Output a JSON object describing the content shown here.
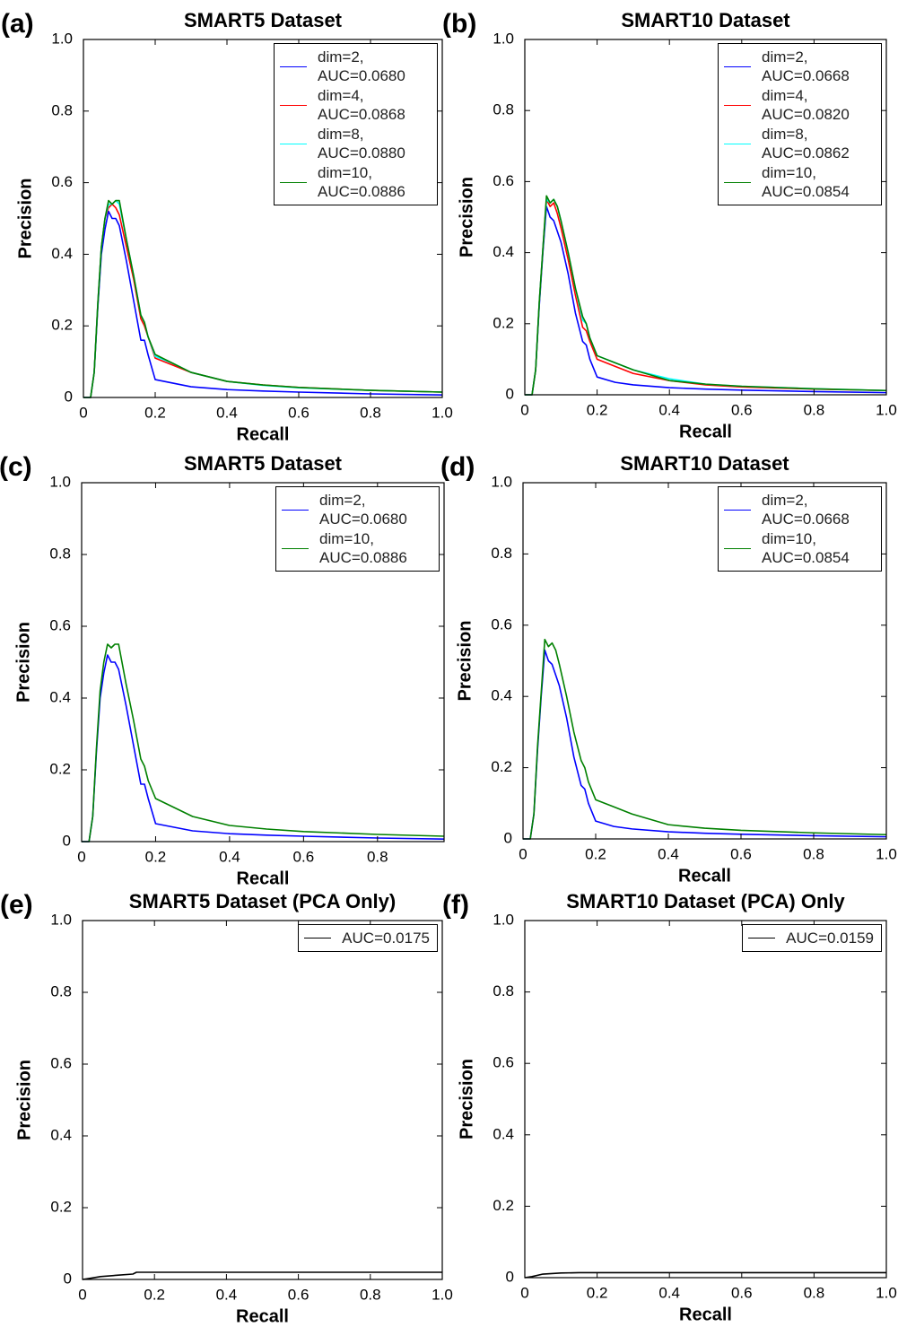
{
  "chart_data": [
    {
      "type": "line",
      "panel": "(a)",
      "title": "SMART5 Dataset",
      "xlabel": "Recall",
      "ylabel": "Precision",
      "xlim": [
        0,
        1
      ],
      "ylim": [
        0,
        1
      ],
      "xticks": [
        0,
        0.2,
        0.4,
        0.6,
        0.8,
        {
          "value": 1,
          "label": "1.0"
        }
      ],
      "yticks": [
        0,
        0.2,
        0.4,
        0.6,
        0.8,
        {
          "value": 1,
          "label": "1.0"
        }
      ],
      "legend": "upper right",
      "x": [
        0,
        0.02,
        0.03,
        0.04,
        0.05,
        0.06,
        0.07,
        0.08,
        0.09,
        0.1,
        0.12,
        0.14,
        0.16,
        0.17,
        0.18,
        0.2,
        0.25,
        0.3,
        0.4,
        0.5,
        0.6,
        0.8,
        1.0
      ],
      "series": [
        {
          "name": "dim=2, AUC=0.0680",
          "color": "#0000ff",
          "values": [
            0,
            0,
            0.07,
            0.25,
            0.4,
            0.47,
            0.52,
            0.5,
            0.5,
            0.48,
            0.38,
            0.27,
            0.16,
            0.16,
            0.12,
            0.05,
            0.04,
            0.03,
            0.022,
            0.018,
            0.015,
            0.01,
            0.007
          ]
        },
        {
          "name": "dim=4, AUC=0.0868",
          "color": "#ff0000",
          "values": [
            0,
            0,
            0.07,
            0.26,
            0.42,
            0.5,
            0.53,
            0.54,
            0.53,
            0.51,
            0.42,
            0.33,
            0.22,
            0.2,
            0.17,
            0.11,
            0.09,
            0.07,
            0.045,
            0.035,
            0.028,
            0.02,
            0.015
          ]
        },
        {
          "name": "dim=8, AUC=0.0880",
          "color": "#00ffff",
          "values": [
            0,
            0,
            0.07,
            0.26,
            0.42,
            0.5,
            0.54,
            0.54,
            0.55,
            0.54,
            0.44,
            0.34,
            0.23,
            0.21,
            0.17,
            0.115,
            0.095,
            0.07,
            0.045,
            0.034,
            0.027,
            0.02,
            0.015
          ]
        },
        {
          "name": "dim=10, AUC=0.0886",
          "color": "#008000",
          "values": [
            0,
            0,
            0.07,
            0.26,
            0.42,
            0.5,
            0.55,
            0.54,
            0.55,
            0.55,
            0.44,
            0.34,
            0.23,
            0.21,
            0.17,
            0.12,
            0.095,
            0.07,
            0.045,
            0.035,
            0.028,
            0.02,
            0.015
          ]
        }
      ]
    },
    {
      "type": "line",
      "panel": "(b)",
      "title": "SMART10 Dataset",
      "xlabel": "Recall",
      "ylabel": "Precision",
      "xlim": [
        0,
        1
      ],
      "ylim": [
        0,
        1
      ],
      "xticks": [
        0,
        0.2,
        0.4,
        0.6,
        0.8,
        {
          "value": 1,
          "label": "1.0"
        }
      ],
      "yticks": [
        0,
        0.2,
        0.4,
        0.6,
        0.8,
        {
          "value": 1,
          "label": "1.0"
        }
      ],
      "legend": "upper right",
      "x": [
        0,
        0.02,
        0.03,
        0.04,
        0.05,
        0.06,
        0.07,
        0.08,
        0.09,
        0.1,
        0.12,
        0.14,
        0.16,
        0.17,
        0.18,
        0.2,
        0.25,
        0.3,
        0.4,
        0.5,
        0.6,
        0.8,
        1.0
      ],
      "series": [
        {
          "name": "dim=2, AUC=0.0668",
          "color": "#0000ff",
          "values": [
            0,
            0,
            0.07,
            0.25,
            0.4,
            0.53,
            0.5,
            0.49,
            0.46,
            0.43,
            0.34,
            0.23,
            0.15,
            0.14,
            0.1,
            0.05,
            0.035,
            0.028,
            0.02,
            0.016,
            0.013,
            0.009,
            0.006
          ]
        },
        {
          "name": "dim=4, AUC=0.0820",
          "color": "#ff0000",
          "values": [
            0,
            0,
            0.07,
            0.26,
            0.41,
            0.55,
            0.53,
            0.54,
            0.51,
            0.47,
            0.38,
            0.28,
            0.19,
            0.18,
            0.15,
            0.1,
            0.08,
            0.06,
            0.04,
            0.028,
            0.022,
            0.016,
            0.012
          ]
        },
        {
          "name": "dim=8, AUC=0.0862",
          "color": "#00ffff",
          "values": [
            0,
            0,
            0.07,
            0.26,
            0.41,
            0.55,
            0.54,
            0.55,
            0.53,
            0.49,
            0.4,
            0.3,
            0.21,
            0.2,
            0.16,
            0.11,
            0.09,
            0.07,
            0.045,
            0.03,
            0.024,
            0.017,
            0.012
          ]
        },
        {
          "name": "dim=10, AUC=0.0854",
          "color": "#008000",
          "values": [
            0,
            0,
            0.07,
            0.26,
            0.41,
            0.56,
            0.54,
            0.55,
            0.53,
            0.49,
            0.4,
            0.3,
            0.22,
            0.2,
            0.16,
            0.11,
            0.09,
            0.07,
            0.04,
            0.03,
            0.024,
            0.017,
            0.012
          ]
        }
      ]
    },
    {
      "type": "line",
      "panel": "(c)",
      "title": "SMART5 Dataset",
      "xlabel": "Recall",
      "ylabel": "Precision",
      "xlim": [
        0,
        0.98
      ],
      "ylim": [
        0,
        1
      ],
      "xticks": [
        0,
        0.2,
        0.4,
        0.6,
        0.8
      ],
      "yticks": [
        0,
        0.2,
        0.4,
        0.6,
        0.8,
        {
          "value": 1,
          "label": "1.0"
        }
      ],
      "legend": "upper right",
      "x": [
        0,
        0.02,
        0.03,
        0.04,
        0.05,
        0.06,
        0.07,
        0.08,
        0.09,
        0.1,
        0.12,
        0.14,
        0.16,
        0.17,
        0.18,
        0.2,
        0.25,
        0.3,
        0.4,
        0.5,
        0.6,
        0.8,
        0.98
      ],
      "series": [
        {
          "name": "dim=2, AUC=0.0680",
          "color": "#0000ff",
          "values": [
            0,
            0,
            0.07,
            0.25,
            0.4,
            0.47,
            0.52,
            0.5,
            0.5,
            0.48,
            0.38,
            0.27,
            0.16,
            0.16,
            0.12,
            0.05,
            0.04,
            0.03,
            0.022,
            0.018,
            0.015,
            0.01,
            0.007
          ]
        },
        {
          "name": "dim=10, AUC=0.0886",
          "color": "#008000",
          "values": [
            0,
            0,
            0.07,
            0.26,
            0.42,
            0.5,
            0.55,
            0.54,
            0.55,
            0.55,
            0.44,
            0.34,
            0.23,
            0.21,
            0.17,
            0.12,
            0.095,
            0.07,
            0.045,
            0.035,
            0.028,
            0.02,
            0.015
          ]
        }
      ]
    },
    {
      "type": "line",
      "panel": "(d)",
      "title": "SMART10 Dataset",
      "xlabel": "Recall",
      "ylabel": "Precision",
      "xlim": [
        0,
        1
      ],
      "ylim": [
        0,
        1
      ],
      "xticks": [
        0,
        0.2,
        0.4,
        0.6,
        0.8,
        {
          "value": 1,
          "label": "1.0"
        }
      ],
      "yticks": [
        0,
        0.2,
        0.4,
        0.6,
        0.8,
        {
          "value": 1,
          "label": "1.0"
        }
      ],
      "legend": "upper right",
      "x": [
        0,
        0.02,
        0.03,
        0.04,
        0.05,
        0.06,
        0.07,
        0.08,
        0.09,
        0.1,
        0.12,
        0.14,
        0.16,
        0.17,
        0.18,
        0.2,
        0.25,
        0.3,
        0.4,
        0.5,
        0.6,
        0.8,
        1.0
      ],
      "series": [
        {
          "name": "dim=2, AUC=0.0668",
          "color": "#0000ff",
          "values": [
            0,
            0,
            0.07,
            0.25,
            0.4,
            0.53,
            0.5,
            0.49,
            0.46,
            0.43,
            0.34,
            0.23,
            0.15,
            0.14,
            0.1,
            0.05,
            0.035,
            0.028,
            0.02,
            0.016,
            0.013,
            0.009,
            0.006
          ]
        },
        {
          "name": "dim=10, AUC=0.0854",
          "color": "#008000",
          "values": [
            0,
            0,
            0.07,
            0.26,
            0.41,
            0.56,
            0.54,
            0.55,
            0.53,
            0.49,
            0.4,
            0.3,
            0.22,
            0.2,
            0.16,
            0.11,
            0.09,
            0.07,
            0.04,
            0.03,
            0.024,
            0.017,
            0.012
          ]
        }
      ]
    },
    {
      "type": "line",
      "panel": "(e)",
      "title": "SMART5 Dataset (PCA Only)",
      "xlabel": "Recall",
      "ylabel": "Precision",
      "xlim": [
        0,
        1
      ],
      "ylim": [
        0,
        1
      ],
      "xticks": [
        0,
        0.2,
        0.4,
        0.6,
        0.8,
        {
          "value": 1,
          "label": "1.0"
        }
      ],
      "yticks": [
        0,
        0.2,
        0.4,
        0.6,
        0.8,
        {
          "value": 1,
          "label": "1.0"
        }
      ],
      "legend": "upper right",
      "x": [
        0,
        0.02,
        0.05,
        0.1,
        0.14,
        0.15,
        0.2,
        0.4,
        0.6,
        0.8,
        1.0
      ],
      "series": [
        {
          "name": "AUC=0.0175",
          "color": "#000000",
          "values": [
            0,
            0.003,
            0.008,
            0.012,
            0.015,
            0.02,
            0.02,
            0.02,
            0.02,
            0.02,
            0.02
          ]
        }
      ]
    },
    {
      "type": "line",
      "panel": "(f)",
      "title": "SMART10 Dataset (PCA) Only",
      "xlabel": "Recall",
      "ylabel": "Precision",
      "xlim": [
        0,
        1
      ],
      "ylim": [
        0,
        1
      ],
      "xticks": [
        0,
        0.2,
        0.4,
        0.6,
        0.8,
        {
          "value": 1,
          "label": "1.0"
        }
      ],
      "yticks": [
        0,
        0.2,
        0.4,
        0.6,
        0.8,
        {
          "value": 1,
          "label": "1.0"
        }
      ],
      "legend": "upper right",
      "x": [
        0,
        0.02,
        0.05,
        0.1,
        0.15,
        0.2,
        0.4,
        0.6,
        0.8,
        1.0
      ],
      "series": [
        {
          "name": "AUC=0.0159",
          "color": "#000000",
          "values": [
            0,
            0.003,
            0.01,
            0.013,
            0.014,
            0.014,
            0.014,
            0.014,
            0.014,
            0.014
          ]
        }
      ]
    }
  ]
}
